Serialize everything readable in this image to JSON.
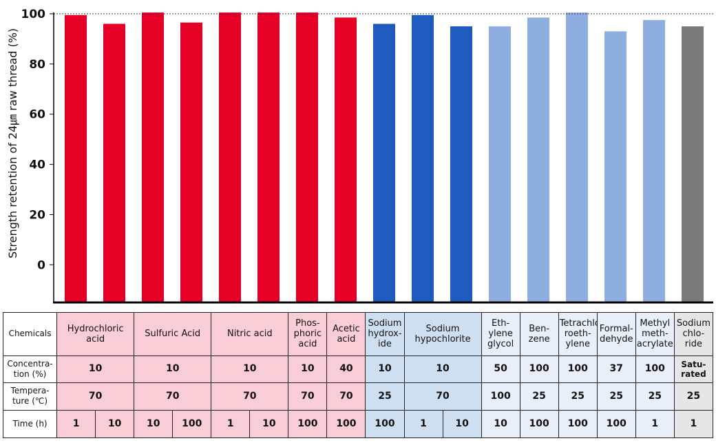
{
  "chart_data": {
    "type": "bar",
    "ylabel": "Strength retention of 24㎛ raw thread (%)",
    "yticks": [
      "0",
      "20",
      "40",
      "60",
      "80",
      "100"
    ],
    "ylim": [
      -15,
      100
    ],
    "reference_line": 100,
    "colors": {
      "acid": "#e60026",
      "base": "#1f5bbf",
      "organic": "#8eaee0",
      "salt": "#7a7a7a"
    },
    "values": [
      99.5,
      96,
      100.5,
      96.5,
      100.5,
      100.5,
      100.5,
      98.5,
      96,
      99.5,
      95,
      95,
      98.5,
      100.5,
      93,
      97.5,
      95
    ],
    "bar_groups": [
      "acid",
      "acid",
      "acid",
      "acid",
      "acid",
      "acid",
      "acid",
      "acid",
      "base",
      "base",
      "base",
      "organic",
      "organic",
      "organic",
      "organic",
      "organic",
      "salt"
    ]
  },
  "table": {
    "row_headers": {
      "chemicals": "Chemicals",
      "concentration": "Concentra-\ntion (%)",
      "temperature": "Tempera-\nture (℃)",
      "time": "Time (h)"
    },
    "chemicals": [
      "Hydrochloric\nacid",
      "Sulfuric Acid",
      "Nitric acid",
      "Phos-\nphoric\nacid",
      "Acetic\nacid",
      "Sodium\nhydrox-\nide",
      "Sodium\nhypochlorite",
      "Eth-\nylene\nglycol",
      "Ben-\nzene",
      "Tetrachlo-\nroeth-\nylene",
      "Formal-\ndehyde",
      "Methyl\nmeth-\nacrylate",
      "Sodium\nchlo-\nride"
    ],
    "concentration": [
      "10",
      "10",
      "10",
      "10",
      "40",
      "10",
      "10",
      "50",
      "100",
      "100",
      "37",
      "100",
      "Satu-\nrated"
    ],
    "temperature": [
      "70",
      "70",
      "70",
      "70",
      "70",
      "25",
      "70",
      "100",
      "25",
      "25",
      "25",
      "25",
      "25"
    ],
    "time": [
      "1",
      "10",
      "10",
      "100",
      "1",
      "10",
      "100",
      "100",
      "100",
      "1",
      "10",
      "10",
      "100",
      "100",
      "100",
      "1",
      "1"
    ]
  }
}
